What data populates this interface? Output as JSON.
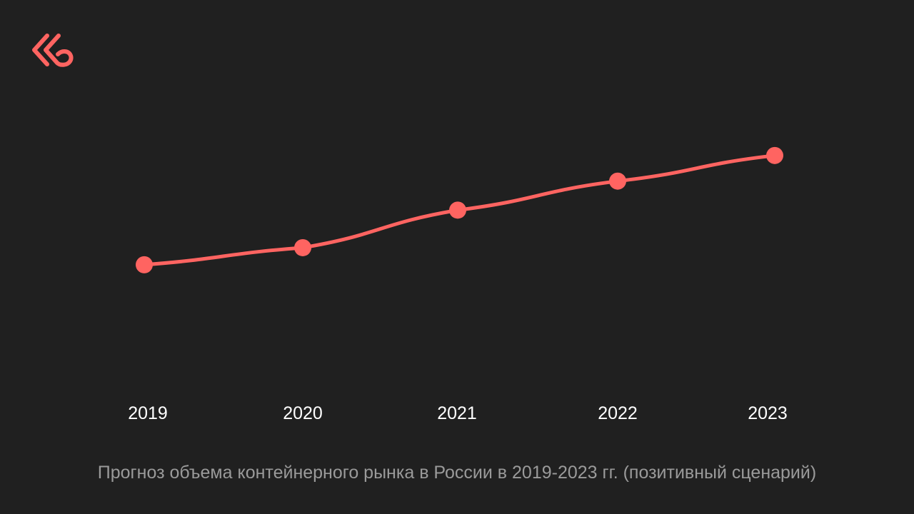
{
  "brand": {
    "logo_icon": "double-chevron-left-logo-icon",
    "accent_color": "#ff6461"
  },
  "caption": "Прогноз объема контейнерного рынка в России в 2019-2023 гг. (позитивный сценарий)",
  "chart_data": {
    "type": "line",
    "x": [
      "2019",
      "2020",
      "2021",
      "2022",
      "2023"
    ],
    "series": [
      {
        "values": [
          100,
          110,
          132,
          149,
          164
        ],
        "color": "#ff6461"
      }
    ],
    "title": "",
    "xlabel": "",
    "ylabel": "",
    "ylim": [
      0,
      230
    ],
    "grid": false,
    "legend": "none"
  }
}
